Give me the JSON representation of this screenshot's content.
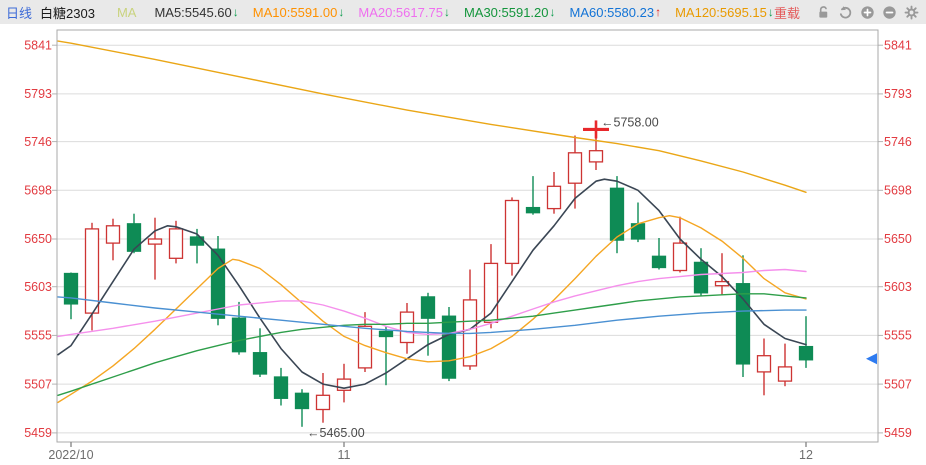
{
  "topbar": {
    "period": "日线",
    "symbol": "白糖2303",
    "ma_group_label": "MA",
    "legend": [
      {
        "label": "MA5:5545.60",
        "color": "#333333",
        "arrow": "↓",
        "arrow_color": "#0e9d4f"
      },
      {
        "label": "MA10:5591.00",
        "color": "#ff9100",
        "arrow": "↓",
        "arrow_color": "#0e9d4f"
      },
      {
        "label": "MA20:5617.75",
        "color": "#ef6fef",
        "arrow": "↓",
        "arrow_color": "#0e9d4f"
      },
      {
        "label": "MA30:5591.20",
        "color": "#14953c",
        "arrow": "↓",
        "arrow_color": "#0e9d4f"
      },
      {
        "label": "MA60:5580.23",
        "color": "#1273d6",
        "arrow": "↑",
        "arrow_color": "#e21a1a"
      },
      {
        "label": "MA120:5695.15",
        "color": "#e99a00",
        "arrow": "↓",
        "arrow_color": "#0e9d4f"
      }
    ],
    "reload_label": "重载",
    "icons": [
      "unlock-icon",
      "undo-icon",
      "zoom-in-icon",
      "zoom-out-icon",
      "settings-icon"
    ]
  },
  "axes": {
    "y_labels": [
      "5841",
      "5793",
      "5746",
      "5698",
      "5650",
      "5603",
      "5555",
      "5507",
      "5459"
    ],
    "x_labels": [
      "2022/10",
      "11",
      "12"
    ]
  },
  "chart_data": {
    "type": "candlestick",
    "symbol": "白糖2303",
    "period": "日线",
    "ylim": [
      5450,
      5856
    ],
    "grid": "horizontal",
    "y_ticks": [
      5841,
      5793,
      5746,
      5698,
      5650,
      5603,
      5555,
      5507,
      5459
    ],
    "x_ticks": [
      {
        "label": "2022/10",
        "index": 0
      },
      {
        "label": "11",
        "index": 13
      },
      {
        "label": "12",
        "index": 35
      }
    ],
    "ohlc": [
      [
        5616,
        5617,
        5571,
        5586
      ],
      [
        5577,
        5666,
        5560,
        5660
      ],
      [
        5646,
        5670,
        5629,
        5663
      ],
      [
        5665,
        5675,
        5636,
        5638
      ],
      [
        5645,
        5671,
        5610,
        5650
      ],
      [
        5631,
        5668,
        5626,
        5660
      ],
      [
        5652,
        5660,
        5626,
        5644
      ],
      [
        5640,
        5653,
        5565,
        5572
      ],
      [
        5572,
        5588,
        5536,
        5539
      ],
      [
        5538,
        5562,
        5514,
        5517
      ],
      [
        5514,
        5523,
        5486,
        5493
      ],
      [
        5498,
        5502,
        5465,
        5483
      ],
      [
        5482,
        5518,
        5469,
        5496
      ],
      [
        5501,
        5527,
        5489,
        5512
      ],
      [
        5523,
        5578,
        5519,
        5564
      ],
      [
        5559,
        5564,
        5506,
        5554
      ],
      [
        5548,
        5587,
        5537,
        5578
      ],
      [
        5593,
        5597,
        5535,
        5572
      ],
      [
        5574,
        5583,
        5510,
        5513
      ],
      [
        5525,
        5620,
        5521,
        5590
      ],
      [
        5568,
        5645,
        5562,
        5626
      ],
      [
        5626,
        5691,
        5614,
        5688
      ],
      [
        5681,
        5712,
        5674,
        5676
      ],
      [
        5680,
        5716,
        5675,
        5702
      ],
      [
        5705,
        5752,
        5680,
        5735
      ],
      [
        5726,
        5758,
        5718,
        5737
      ],
      [
        5700,
        5712,
        5636,
        5649
      ],
      [
        5665,
        5686,
        5647,
        5650
      ],
      [
        5633,
        5651,
        5620,
        5622
      ],
      [
        5619,
        5672,
        5617,
        5646
      ],
      [
        5627,
        5641,
        5594,
        5597
      ],
      [
        5604,
        5636,
        5595,
        5608
      ],
      [
        5606,
        5634,
        5514,
        5527
      ],
      [
        5519,
        5552,
        5496,
        5535
      ],
      [
        5510,
        5547,
        5505,
        5524
      ],
      [
        5544,
        5574,
        5523,
        5531
      ]
    ],
    "ma_series": [
      {
        "name": "MA5",
        "value": 5545.6,
        "color": "#3a4654",
        "points": [
          [
            -0.62,
            5536
          ],
          [
            0,
            5545
          ],
          [
            1,
            5576
          ],
          [
            2,
            5608
          ],
          [
            3,
            5640
          ],
          [
            4,
            5658
          ],
          [
            4.6,
            5663
          ],
          [
            5,
            5662
          ],
          [
            6,
            5655
          ],
          [
            7,
            5634
          ],
          [
            8,
            5604
          ],
          [
            9,
            5572
          ],
          [
            10,
            5542
          ],
          [
            11,
            5519
          ],
          [
            12,
            5507
          ],
          [
            13,
            5503
          ],
          [
            14,
            5507
          ],
          [
            15,
            5518
          ],
          [
            16,
            5532
          ],
          [
            17,
            5546
          ],
          [
            18,
            5556
          ],
          [
            19,
            5561
          ],
          [
            20,
            5577
          ],
          [
            21,
            5608
          ],
          [
            22,
            5639
          ],
          [
            23,
            5663
          ],
          [
            24,
            5690
          ],
          [
            25,
            5707
          ],
          [
            25.4,
            5709
          ],
          [
            26,
            5707
          ],
          [
            27,
            5698
          ],
          [
            28,
            5678
          ],
          [
            29,
            5650
          ],
          [
            30,
            5630
          ],
          [
            31,
            5613
          ],
          [
            32,
            5591
          ],
          [
            33,
            5566
          ],
          [
            34,
            5552
          ],
          [
            35,
            5546
          ]
        ]
      },
      {
        "name": "MA10",
        "value": 5591.0,
        "color": "#f5a623",
        "points": [
          [
            -0.62,
            5489
          ],
          [
            0,
            5497
          ],
          [
            1,
            5510
          ],
          [
            2,
            5525
          ],
          [
            3,
            5542
          ],
          [
            4,
            5561
          ],
          [
            5,
            5581
          ],
          [
            6,
            5601
          ],
          [
            7,
            5621
          ],
          [
            7.7,
            5630
          ],
          [
            8,
            5629
          ],
          [
            9,
            5621
          ],
          [
            10,
            5605
          ],
          [
            11,
            5587
          ],
          [
            12,
            5569
          ],
          [
            13,
            5554
          ],
          [
            14,
            5545
          ],
          [
            15,
            5538
          ],
          [
            16,
            5532
          ],
          [
            17,
            5529
          ],
          [
            18,
            5530
          ],
          [
            19,
            5534
          ],
          [
            20,
            5542
          ],
          [
            21,
            5554
          ],
          [
            22,
            5571
          ],
          [
            23,
            5590
          ],
          [
            24,
            5611
          ],
          [
            25,
            5633
          ],
          [
            26,
            5652
          ],
          [
            27,
            5665
          ],
          [
            28,
            5671
          ],
          [
            28.5,
            5673
          ],
          [
            29,
            5671
          ],
          [
            30,
            5661
          ],
          [
            31,
            5648
          ],
          [
            32,
            5631
          ],
          [
            33,
            5611
          ],
          [
            34,
            5597
          ],
          [
            35,
            5591
          ]
        ]
      },
      {
        "name": "MA20",
        "value": 5617.75,
        "color": "#f590ec",
        "points": [
          [
            -0.62,
            5554
          ],
          [
            0,
            5556
          ],
          [
            2,
            5562
          ],
          [
            4,
            5569
          ],
          [
            6,
            5577
          ],
          [
            8,
            5585
          ],
          [
            10,
            5589
          ],
          [
            11,
            5589
          ],
          [
            12,
            5585
          ],
          [
            13,
            5579
          ],
          [
            14,
            5572
          ],
          [
            15,
            5564
          ],
          [
            16,
            5558
          ],
          [
            17,
            5556
          ],
          [
            18,
            5557
          ],
          [
            19,
            5561
          ],
          [
            20,
            5567
          ],
          [
            21,
            5574
          ],
          [
            22,
            5581
          ],
          [
            23,
            5588
          ],
          [
            24,
            5594
          ],
          [
            25,
            5599
          ],
          [
            26,
            5604
          ],
          [
            27,
            5608
          ],
          [
            28,
            5611
          ],
          [
            29,
            5613
          ],
          [
            30,
            5615
          ],
          [
            31,
            5616
          ],
          [
            32,
            5617
          ],
          [
            33,
            5619
          ],
          [
            34,
            5620
          ],
          [
            35,
            5618
          ]
        ]
      },
      {
        "name": "MA30",
        "value": 5591.2,
        "color": "#2e9e4a",
        "points": [
          [
            -0.62,
            5496
          ],
          [
            0,
            5500
          ],
          [
            1,
            5507
          ],
          [
            2,
            5514
          ],
          [
            3,
            5521
          ],
          [
            4,
            5528
          ],
          [
            5,
            5534
          ],
          [
            6,
            5540
          ],
          [
            7,
            5545
          ],
          [
            8,
            5550
          ],
          [
            9,
            5554
          ],
          [
            10,
            5558
          ],
          [
            11,
            5561
          ],
          [
            12,
            5563
          ],
          [
            13,
            5565
          ],
          [
            14,
            5566
          ],
          [
            15,
            5566
          ],
          [
            16,
            5567
          ],
          [
            17,
            5567
          ],
          [
            18,
            5568
          ],
          [
            19,
            5569
          ],
          [
            20,
            5570
          ],
          [
            21,
            5572
          ],
          [
            22,
            5574
          ],
          [
            23,
            5577
          ],
          [
            24,
            5580
          ],
          [
            25,
            5583
          ],
          [
            26,
            5586
          ],
          [
            27,
            5589
          ],
          [
            28,
            5591
          ],
          [
            29,
            5593
          ],
          [
            30,
            5594
          ],
          [
            31,
            5595
          ],
          [
            32,
            5596
          ],
          [
            33,
            5596
          ],
          [
            34,
            5594
          ],
          [
            35,
            5592
          ]
        ]
      },
      {
        "name": "MA60",
        "value": 5580.23,
        "color": "#4a90d2",
        "points": [
          [
            -0.62,
            5593
          ],
          [
            0,
            5592
          ],
          [
            2,
            5587
          ],
          [
            4,
            5582
          ],
          [
            6,
            5578
          ],
          [
            8,
            5574
          ],
          [
            10,
            5570
          ],
          [
            12,
            5566
          ],
          [
            14,
            5562
          ],
          [
            16,
            5559
          ],
          [
            17,
            5558
          ],
          [
            18,
            5557
          ],
          [
            19,
            5557
          ],
          [
            20,
            5558
          ],
          [
            22,
            5561
          ],
          [
            24,
            5565
          ],
          [
            26,
            5570
          ],
          [
            28,
            5574
          ],
          [
            30,
            5577
          ],
          [
            32,
            5579
          ],
          [
            34,
            5580
          ],
          [
            35,
            5580
          ]
        ]
      },
      {
        "name": "MA120",
        "value": 5695.15,
        "color": "#eaa616",
        "points": [
          [
            -0.62,
            5845
          ],
          [
            0,
            5843
          ],
          [
            4,
            5827
          ],
          [
            8,
            5810
          ],
          [
            12,
            5793
          ],
          [
            16,
            5777
          ],
          [
            20,
            5763
          ],
          [
            24,
            5750
          ],
          [
            26,
            5744
          ],
          [
            28,
            5737
          ],
          [
            30,
            5727
          ],
          [
            32,
            5716
          ],
          [
            34,
            5703
          ],
          [
            35,
            5696
          ]
        ]
      }
    ],
    "annotations": [
      {
        "text": "←5758.00",
        "index": 25,
        "price": 5758,
        "attach": "high",
        "marker": "cross"
      },
      {
        "text": "←5465.00",
        "index": 11,
        "price": 5465,
        "attach": "low",
        "marker": "none"
      }
    ],
    "latest_price_marker": {
      "price": 5532,
      "color": "#2e7bf0"
    },
    "colors": {
      "up": "#cd3433",
      "down": "#0e8b55",
      "grid": "#dcdcdc",
      "border": "#a9a9a9",
      "axis_label": "#e23b41",
      "x_label": "#6e6e6e",
      "annotation": "#4a4a4a"
    }
  }
}
